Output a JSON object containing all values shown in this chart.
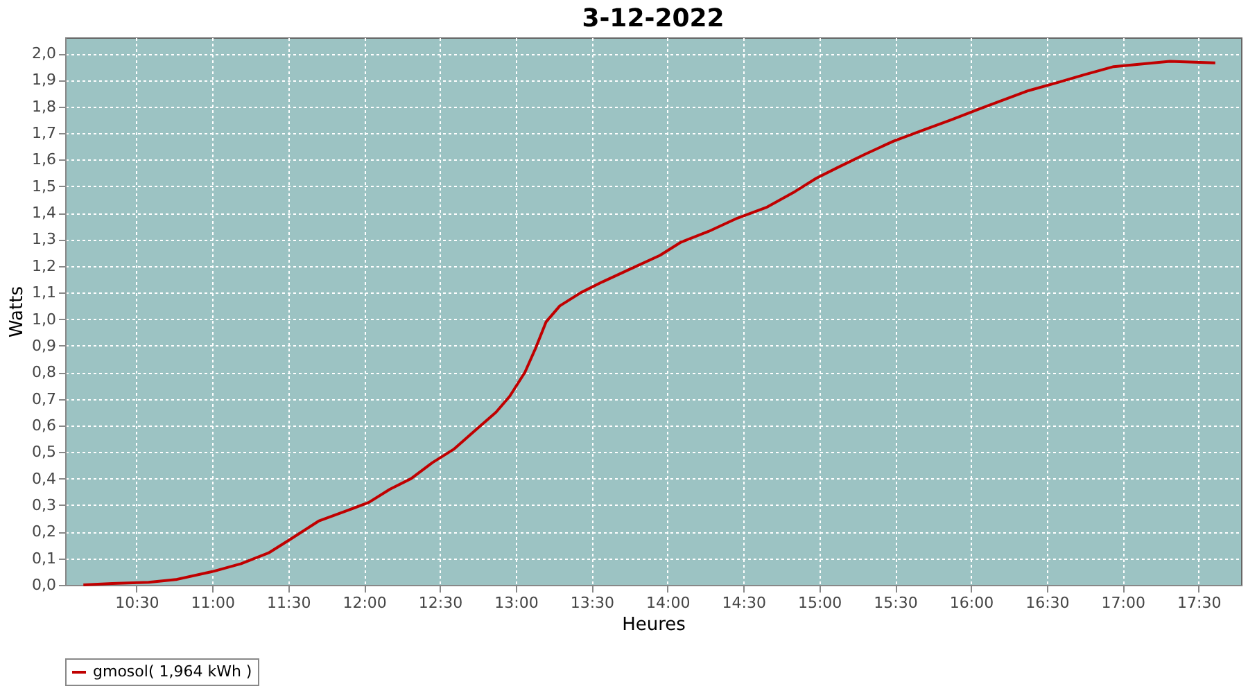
{
  "chart_data": {
    "type": "line",
    "title": "3-12-2022",
    "xlabel": "Heures",
    "ylabel": "Watts",
    "xlim": [
      10.03,
      17.78
    ],
    "ylim": [
      0,
      2.06
    ],
    "xticks": [
      {
        "value": 10.5,
        "label": "10:30"
      },
      {
        "value": 11,
        "label": "11:00"
      },
      {
        "value": 11.5,
        "label": "11:30"
      },
      {
        "value": 12,
        "label": "12:00"
      },
      {
        "value": 12.5,
        "label": "12:30"
      },
      {
        "value": 13,
        "label": "13:00"
      },
      {
        "value": 13.5,
        "label": "13:30"
      },
      {
        "value": 14,
        "label": "14:00"
      },
      {
        "value": 14.5,
        "label": "14:30"
      },
      {
        "value": 15,
        "label": "15:00"
      },
      {
        "value": 15.5,
        "label": "15:30"
      },
      {
        "value": 16,
        "label": "16:00"
      },
      {
        "value": 16.5,
        "label": "16:30"
      },
      {
        "value": 17,
        "label": "17:00"
      },
      {
        "value": 17.5,
        "label": "17:30"
      }
    ],
    "yticks": [
      {
        "value": 0,
        "label": "0,0"
      },
      {
        "value": 0.1,
        "label": "0,1"
      },
      {
        "value": 0.2,
        "label": "0,2"
      },
      {
        "value": 0.3,
        "label": "0,3"
      },
      {
        "value": 0.4,
        "label": "0,4"
      },
      {
        "value": 0.5,
        "label": "0,5"
      },
      {
        "value": 0.6,
        "label": "0,6"
      },
      {
        "value": 0.7,
        "label": "0,7"
      },
      {
        "value": 0.8,
        "label": "0,8"
      },
      {
        "value": 0.9,
        "label": "0,9"
      },
      {
        "value": 1,
        "label": "1,0"
      },
      {
        "value": 1.1,
        "label": "1,1"
      },
      {
        "value": 1.2,
        "label": "1,2"
      },
      {
        "value": 1.3,
        "label": "1,3"
      },
      {
        "value": 1.4,
        "label": "1,4"
      },
      {
        "value": 1.5,
        "label": "1,5"
      },
      {
        "value": 1.6,
        "label": "1,6"
      },
      {
        "value": 1.7,
        "label": "1,7"
      },
      {
        "value": 1.8,
        "label": "1,8"
      },
      {
        "value": 1.9,
        "label": "1,9"
      },
      {
        "value": 2,
        "label": "2,0"
      }
    ],
    "grid": true,
    "legend": "bottom",
    "marker": "none",
    "line_style": "solid",
    "series": [
      {
        "name": "gmosol( 1,964 kWh )",
        "color": "#c00000",
        "x": [
          10.15,
          10.34,
          10.58,
          10.76,
          11.0,
          11.19,
          11.37,
          11.51,
          11.7,
          11.89,
          12.03,
          12.17,
          12.31,
          12.45,
          12.59,
          12.73,
          12.87,
          12.96,
          13.06,
          13.13,
          13.2,
          13.29,
          13.43,
          13.57,
          13.76,
          13.95,
          14.09,
          14.27,
          14.46,
          14.65,
          14.84,
          14.98,
          15.12,
          15.3,
          15.49,
          15.68,
          15.87,
          16.05,
          16.19,
          16.38,
          16.57,
          16.75,
          16.94,
          17.13,
          17.31,
          17.61
        ],
        "values": [
          0,
          0.005,
          0.01,
          0.02,
          0.05,
          0.08,
          0.12,
          0.17,
          0.24,
          0.28,
          0.31,
          0.36,
          0.4,
          0.46,
          0.51,
          0.58,
          0.65,
          0.71,
          0.8,
          0.89,
          0.99,
          1.05,
          1.1,
          1.14,
          1.19,
          1.24,
          1.29,
          1.33,
          1.38,
          1.42,
          1.48,
          1.53,
          1.57,
          1.62,
          1.67,
          1.71,
          1.75,
          1.79,
          1.82,
          1.86,
          1.89,
          1.92,
          1.95,
          1.96,
          1.97,
          1.964
        ]
      }
    ]
  }
}
